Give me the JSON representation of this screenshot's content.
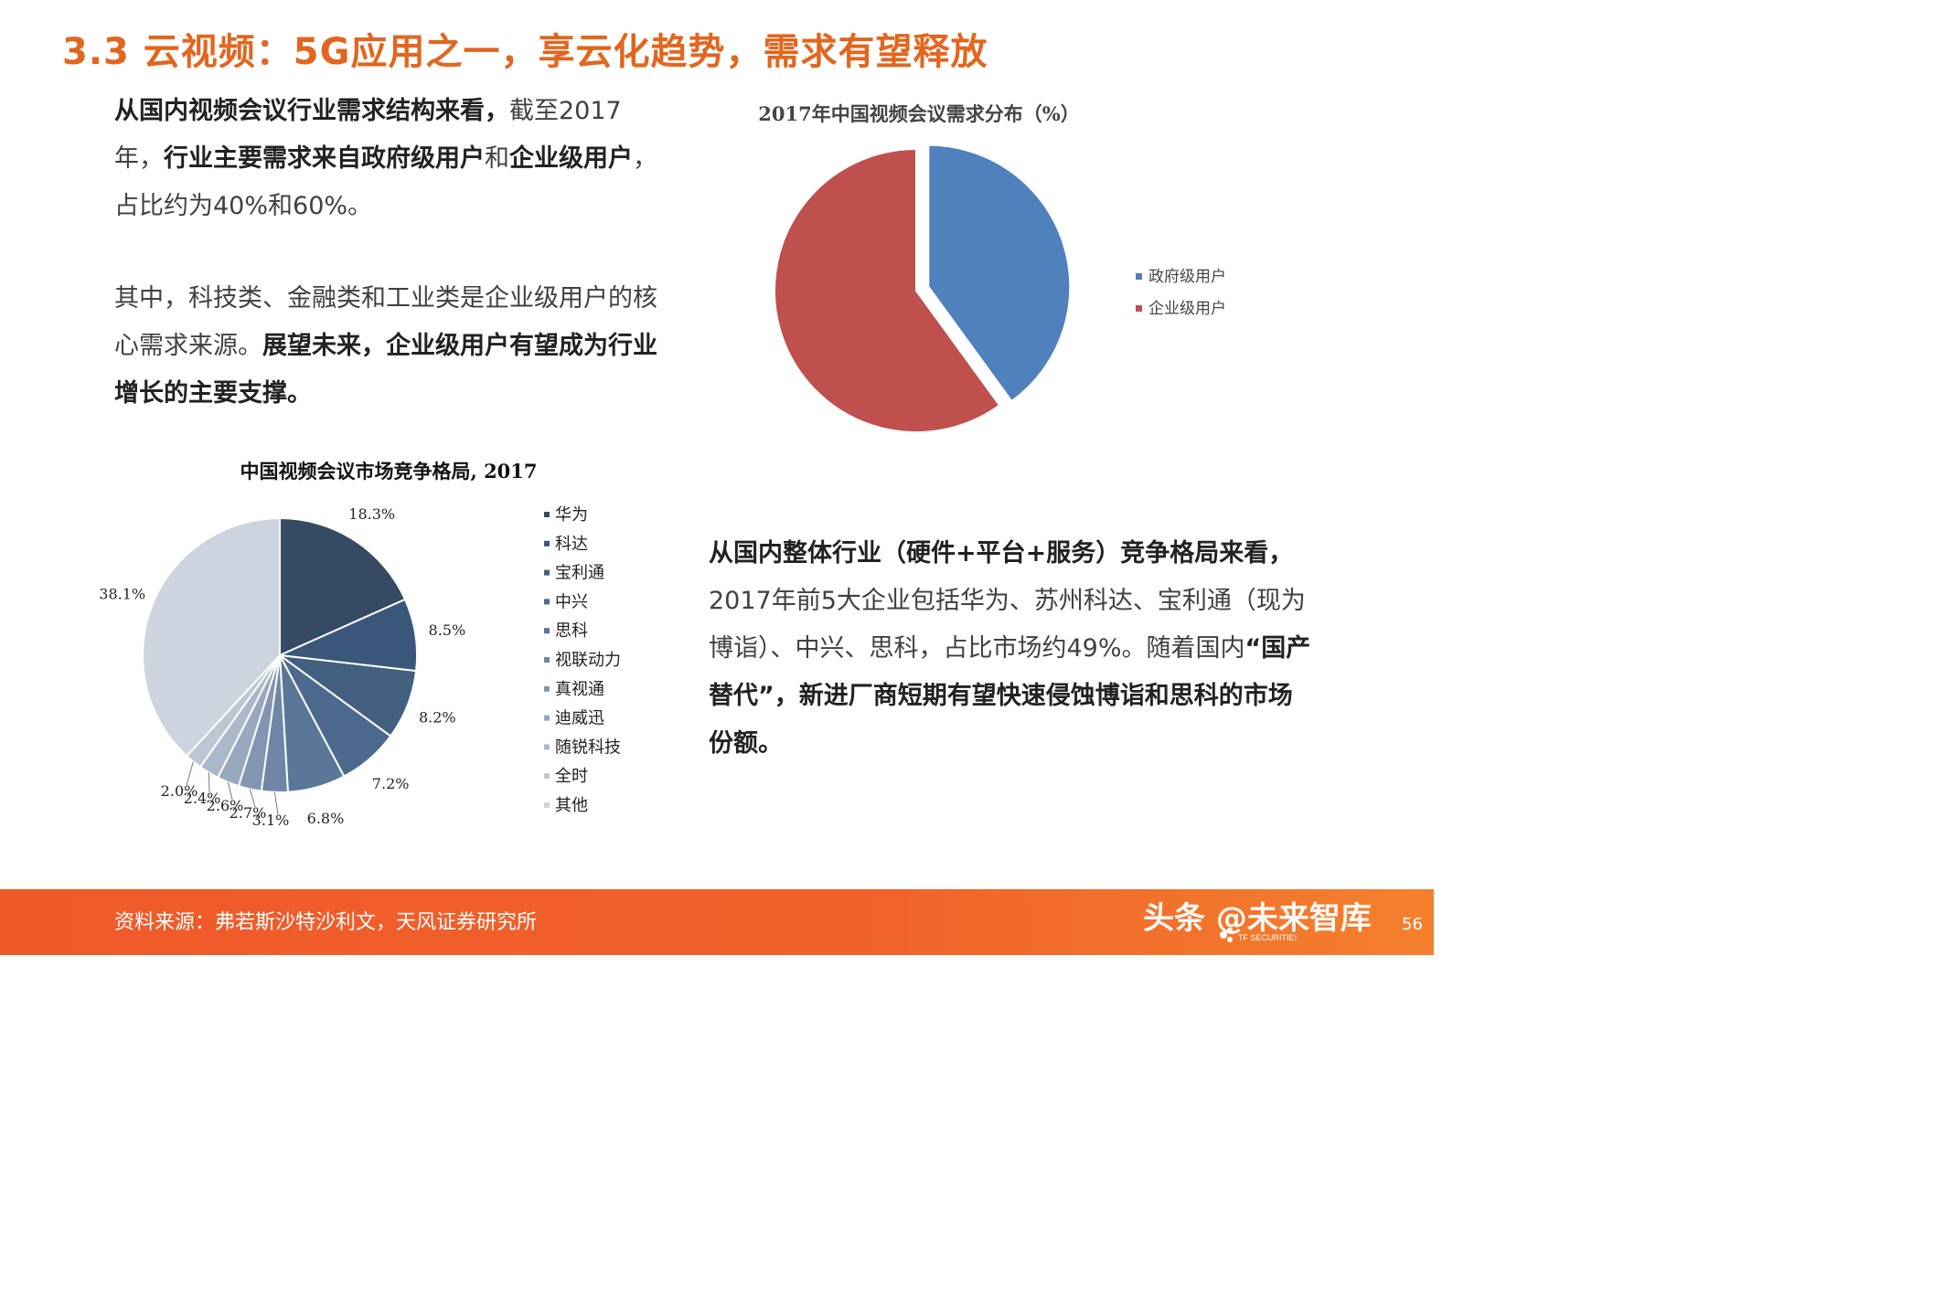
{
  "title": "3.3 云视频：5G应用之一，享云化趋势，需求有望释放",
  "para1": [
    {
      "t": "从国内视频会议行业需求结构来看，",
      "b": true
    },
    {
      "t": "截至2017年，",
      "b": false
    },
    {
      "t": "行业主要需求来自政府级用户",
      "b": true
    },
    {
      "t": "和",
      "b": false
    },
    {
      "t": "企业级用户",
      "b": true
    },
    {
      "t": "，占比约为40%和60%。",
      "b": false
    }
  ],
  "para2": [
    {
      "t": "其中，科技类、金融类和工业类是企业级用户的核心需求来源。",
      "b": false
    },
    {
      "t": "展望未来，企业级用户有望成为行业增长的主要支撑。",
      "b": true
    }
  ],
  "para3": [
    {
      "t": "从国内整体行业（硬件+平台+服务）竞争格局来看，",
      "b": true
    },
    {
      "t": "2017年前5大企业包括华为、苏州科达、宝利通（现为博诣）、中兴、思科，占比市场约49%。随着国内",
      "b": false
    },
    {
      "t": "“国产替代”，新进厂商短期有望快速侵蚀博诣和思科的市场份额。",
      "b": true
    }
  ],
  "chart_data": [
    {
      "type": "pie",
      "title": "2017年中国视频会议需求分布（%）",
      "labels": [
        "政府级用户",
        "企业级用户"
      ],
      "values": [
        40,
        60
      ],
      "colors": [
        "#4F81BD",
        "#C0504D"
      ],
      "exploded": [
        true,
        false
      ],
      "legend": "right"
    },
    {
      "type": "pie",
      "title": "中国视频会议市场竞争格局, 2017",
      "labels": [
        "华为",
        "科达",
        "宝利通",
        "中兴",
        "思科",
        "视联动力",
        "真视通",
        "迪威迅",
        "随锐科技",
        "全时",
        "其他"
      ],
      "values": [
        18.3,
        8.5,
        8.2,
        7.2,
        6.8,
        3.1,
        2.7,
        2.6,
        2.4,
        2.0,
        38.1
      ],
      "value_labels": [
        "18.3%",
        "8.5%",
        "8.2%",
        "7.2%",
        "6.8%",
        "3.1%",
        "2.7%",
        "2.6%",
        "2.4%",
        "2.0%",
        "38.1%"
      ],
      "colors": [
        "#364A63",
        "#3B5779",
        "#43607F",
        "#4D6A8E",
        "#5A7798",
        "#6E87A6",
        "#8296B1",
        "#98A8BE",
        "#ABB8CA",
        "#BCC6D4",
        "#CDD4DF"
      ],
      "legend": "right"
    }
  ],
  "footer": {
    "source": "资料来源：弗若斯沙特沙利文，天风证券研究所",
    "watermark": "头条 @未来智库",
    "page": "56",
    "logo_text": "TF SECURITIES"
  }
}
